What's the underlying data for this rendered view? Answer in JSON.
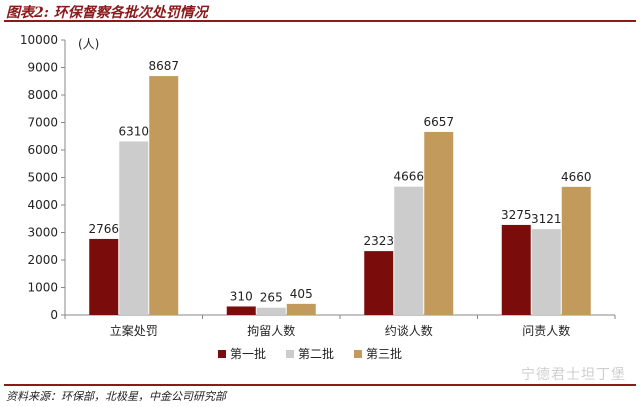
{
  "figure_title": "图表2: 环保督察各批次处罚情况",
  "source_note": "资料来源：环保部，北极星，中金公司研究部",
  "watermark": "宁德君士坦丁堡",
  "colors": {
    "series": [
      "#7a0c0c",
      "#cccccc",
      "#c29a5c"
    ],
    "rule": "#8b1a1a"
  },
  "chart_data": {
    "type": "bar",
    "categories": [
      "立案处罚",
      "拘留人数",
      "约谈人数",
      "问责人数"
    ],
    "series": [
      {
        "name": "第一批",
        "values": [
          2766,
          310,
          2323,
          3275
        ]
      },
      {
        "name": "第二批",
        "values": [
          6310,
          265,
          4666,
          3121
        ]
      },
      {
        "name": "第三批",
        "values": [
          8687,
          405,
          6657,
          4660
        ]
      }
    ],
    "y_unit_label": "(人)",
    "ylim": [
      0,
      10000
    ],
    "yticks": [
      0,
      1000,
      2000,
      3000,
      4000,
      5000,
      6000,
      7000,
      8000,
      9000,
      10000
    ],
    "grid": false,
    "legend_position": "bottom-center"
  }
}
